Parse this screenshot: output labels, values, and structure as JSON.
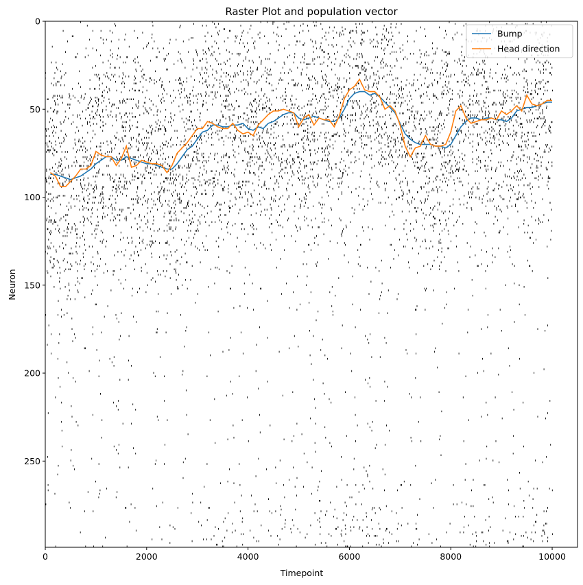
{
  "chart_data": {
    "type": "line",
    "title": "Raster Plot and population vector",
    "xlabel": "Timepoint",
    "ylabel": "Neuron",
    "xlim": [
      0,
      10500
    ],
    "ylim": [
      299,
      0
    ],
    "y_inverted": true,
    "xticks": [
      0,
      2000,
      4000,
      6000,
      8000,
      10000
    ],
    "yticks": [
      0,
      50,
      100,
      150,
      200,
      250
    ],
    "grid": false,
    "legend_placement": "top-right",
    "raster": {
      "description_type": "spike raster",
      "neuron_count": 300,
      "timepoint_max": 10000,
      "color": "#000000"
    },
    "series": [
      {
        "name": "Bump",
        "color": "#1f77b4",
        "x": [
          100,
          200,
          300,
          400,
          500,
          600,
          700,
          800,
          900,
          1000,
          1100,
          1200,
          1300,
          1400,
          1500,
          1600,
          1700,
          1800,
          1900,
          2000,
          2100,
          2200,
          2300,
          2400,
          2500,
          2600,
          2700,
          2800,
          2900,
          3000,
          3100,
          3200,
          3300,
          3400,
          3500,
          3600,
          3700,
          3800,
          3900,
          4000,
          4100,
          4200,
          4300,
          4400,
          4500,
          4600,
          4700,
          4800,
          4900,
          5000,
          5100,
          5200,
          5300,
          5400,
          5500,
          5600,
          5700,
          5800,
          5900,
          6000,
          6100,
          6200,
          6300,
          6400,
          6500,
          6600,
          6700,
          6800,
          6900,
          7000,
          7100,
          7200,
          7300,
          7400,
          7500,
          7600,
          7700,
          7800,
          7900,
          8000,
          8100,
          8200,
          8300,
          8400,
          8500,
          8600,
          8700,
          8800,
          8900,
          9000,
          9100,
          9200,
          9300,
          9400,
          9500,
          9600,
          9700,
          9800,
          9900,
          10000
        ],
        "values": [
          87,
          87,
          88,
          89,
          90,
          89,
          88,
          86,
          84,
          81,
          79,
          77,
          77,
          79,
          79,
          77,
          78,
          79,
          80,
          81,
          81,
          82,
          83,
          84,
          84,
          81,
          77,
          73,
          71,
          67,
          63,
          62,
          59,
          59,
          60,
          60,
          59,
          59,
          58,
          61,
          62,
          60,
          61,
          58,
          57,
          55,
          53,
          52,
          52,
          55,
          56,
          55,
          54,
          55,
          56,
          57,
          57,
          55,
          50,
          44,
          41,
          40,
          40,
          42,
          41,
          43,
          46,
          49,
          52,
          58,
          64,
          67,
          69,
          70,
          70,
          70,
          71,
          71,
          72,
          70,
          65,
          60,
          57,
          55,
          55,
          56,
          55,
          55,
          56,
          56,
          57,
          55,
          51,
          50,
          49,
          49,
          48,
          47,
          46,
          46
        ]
      },
      {
        "name": "Head direction",
        "color": "#ff7f0e",
        "x": [
          100,
          200,
          300,
          400,
          500,
          600,
          700,
          800,
          900,
          1000,
          1100,
          1200,
          1300,
          1400,
          1500,
          1600,
          1700,
          1800,
          1900,
          2000,
          2100,
          2200,
          2300,
          2400,
          2500,
          2600,
          2700,
          2800,
          2900,
          3000,
          3100,
          3200,
          3300,
          3400,
          3500,
          3600,
          3700,
          3800,
          3900,
          4000,
          4100,
          4200,
          4300,
          4400,
          4500,
          4600,
          4700,
          4800,
          4900,
          5000,
          5100,
          5200,
          5300,
          5400,
          5500,
          5600,
          5700,
          5800,
          5900,
          6000,
          6100,
          6200,
          6300,
          6400,
          6500,
          6600,
          6700,
          6800,
          6900,
          7000,
          7100,
          7200,
          7300,
          7400,
          7500,
          7600,
          7700,
          7800,
          7900,
          8000,
          8100,
          8200,
          8300,
          8400,
          8500,
          8600,
          8700,
          8800,
          8900,
          9000,
          9100,
          9200,
          9300,
          9400,
          9500,
          9600,
          9700,
          9800,
          9900,
          10000
        ],
        "values": [
          86,
          88,
          94,
          94,
          91,
          88,
          84,
          84,
          82,
          74,
          76,
          77,
          77,
          82,
          78,
          71,
          83,
          82,
          79,
          80,
          81,
          81,
          82,
          86,
          82,
          75,
          72,
          69,
          65,
          61,
          61,
          57,
          58,
          60,
          61,
          61,
          58,
          62,
          64,
          63,
          65,
          59,
          56,
          53,
          51,
          51,
          50,
          51,
          52,
          60,
          55,
          53,
          59,
          55,
          56,
          56,
          60,
          54,
          44,
          39,
          37,
          33,
          39,
          40,
          40,
          43,
          50,
          48,
          51,
          59,
          71,
          77,
          72,
          71,
          65,
          70,
          71,
          71,
          70,
          63,
          51,
          48,
          55,
          58,
          57,
          56,
          56,
          55,
          56,
          51,
          53,
          51,
          48,
          51,
          42,
          47,
          48,
          47,
          45,
          45
        ]
      }
    ]
  }
}
